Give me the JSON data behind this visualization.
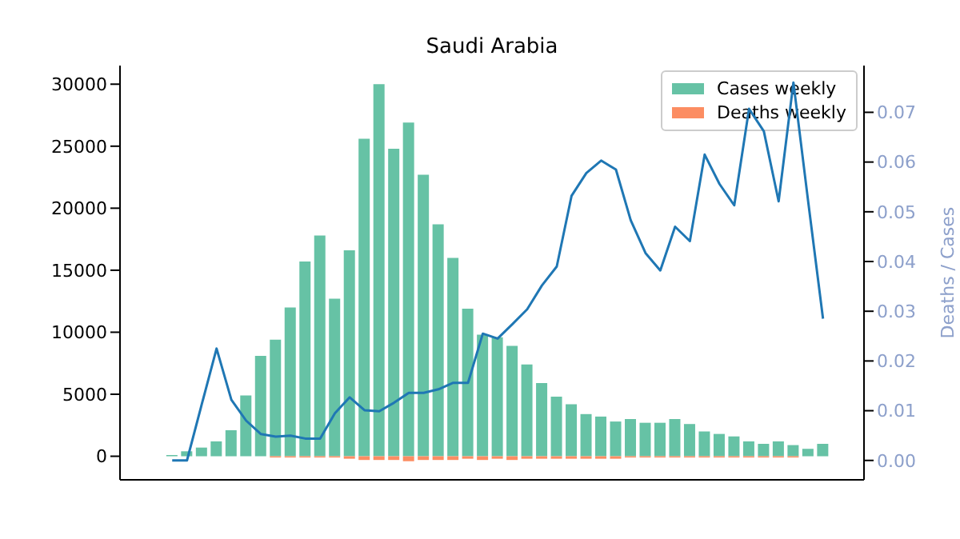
{
  "chart_data": {
    "type": "bar",
    "title": "Saudi Arabia",
    "y2label": "Deaths / Cases",
    "stacked": true,
    "legend": "top right",
    "categories": [
      null,
      null,
      null,
      null,
      null,
      null,
      null,
      null,
      null,
      null,
      null,
      null,
      null,
      null,
      null,
      null,
      null,
      null,
      null,
      null,
      null,
      null,
      null,
      null,
      null,
      null,
      null,
      null,
      null,
      null,
      null,
      null,
      null,
      null,
      null,
      null,
      null,
      null,
      null,
      null,
      null,
      null,
      null,
      null,
      null
    ],
    "ylim": [
      -1900,
      31500
    ],
    "yticks": [
      0,
      5000,
      10000,
      15000,
      20000,
      25000,
      30000
    ],
    "y2lim": [
      -0.0039,
      0.0794
    ],
    "y2ticks": [
      {
        "value": 0,
        "label": "0.00"
      },
      {
        "value": 0.01,
        "label": "0.01"
      },
      {
        "value": 0.02,
        "label": "0.02"
      },
      {
        "value": 0.03,
        "label": "0.03"
      },
      {
        "value": 0.04,
        "label": "0.04"
      },
      {
        "value": 0.05,
        "label": "0.05"
      },
      {
        "value": 0.06,
        "label": "0.06"
      },
      {
        "value": 0.07,
        "label": "0.07"
      }
    ],
    "series": [
      {
        "name": "Cases weekly",
        "color": "#66c2a5",
        "values": [
          100,
          400,
          700,
          1200,
          2100,
          4900,
          8100,
          9400,
          12000,
          15700,
          17800,
          12700,
          16600,
          25600,
          30000,
          24800,
          26900,
          22700,
          18700,
          16000,
          11900,
          9800,
          9600,
          8900,
          7400,
          5900,
          4800,
          4200,
          3400,
          3200,
          2800,
          3000,
          2700,
          2700,
          3000,
          2600,
          2000,
          1800,
          1600,
          1200,
          1000,
          1200,
          900,
          600,
          1000
        ]
      },
      {
        "name": "Deaths weekly",
        "color": "#fc8d62",
        "values": [
          0,
          0,
          0,
          0,
          0,
          0,
          0,
          -100,
          -100,
          -100,
          -100,
          -100,
          -200,
          -300,
          -300,
          -300,
          -400,
          -300,
          -300,
          -300,
          -200,
          -300,
          -200,
          -300,
          -200,
          -200,
          -200,
          -200,
          -200,
          -200,
          -200,
          -100,
          -100,
          -100,
          -100,
          -100,
          -100,
          -100,
          -100,
          -100,
          -100,
          -100,
          -100,
          0,
          0
        ]
      },
      {
        "type": "line",
        "axis": "y2",
        "color": "#1f77b4",
        "values": [
          0,
          0,
          0.0113,
          0.0225,
          0.0122,
          0.008,
          0.0053,
          0.0048,
          0.005,
          0.0044,
          0.0044,
          0.0095,
          0.0127,
          0.0101,
          0.0099,
          0.0116,
          0.0136,
          0.0136,
          0.0143,
          0.0156,
          0.0156,
          0.0255,
          0.0245,
          0.0274,
          0.0304,
          0.0352,
          0.039,
          0.0532,
          0.0578,
          0.0603,
          0.0585,
          0.0483,
          0.0417,
          0.0382,
          0.047,
          0.0441,
          0.0615,
          0.0556,
          0.0513,
          0.0707,
          0.0662,
          0.0521,
          0.076,
          0.052,
          0.0285
        ]
      }
    ]
  }
}
